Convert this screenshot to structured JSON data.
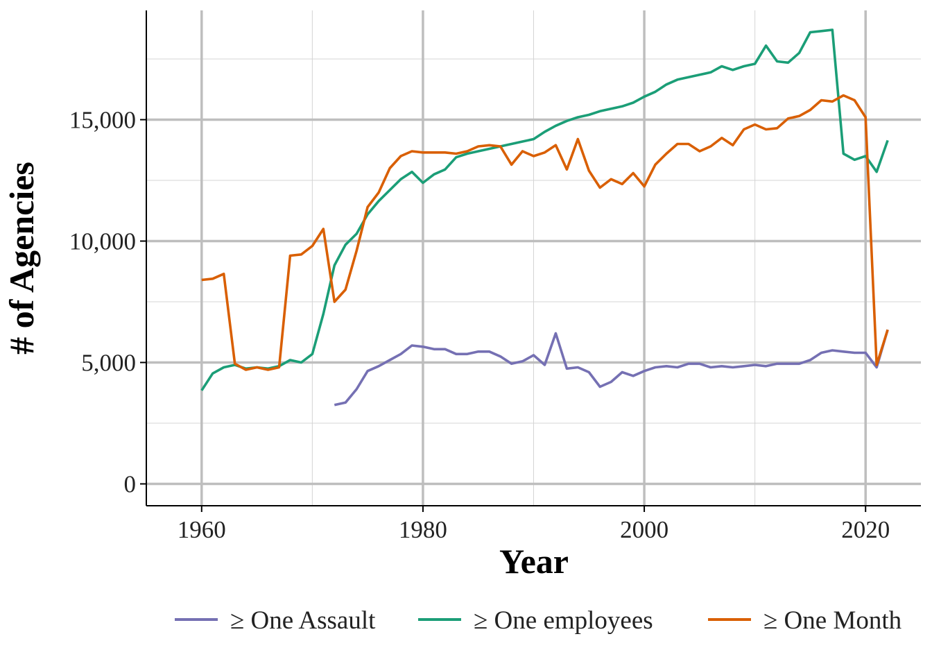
{
  "chart_data": {
    "type": "line",
    "title": "",
    "xlabel": "Year",
    "ylabel": "# of Agencies",
    "xlim": [
      1955,
      2025
    ],
    "ylim": [
      -900,
      19500
    ],
    "x_ticks": [
      1960,
      1980,
      2000,
      2020
    ],
    "x_tick_labels": [
      "1960",
      "1980",
      "2000",
      "2020"
    ],
    "y_ticks": [
      0,
      5000,
      10000,
      15000
    ],
    "y_tick_labels": [
      "0",
      "5,000",
      "10,000",
      "15,000"
    ],
    "grid": true,
    "legend_position": "bottom",
    "series": [
      {
        "name": "≥ One Assault",
        "color": "#7570B3",
        "x": [
          1972,
          1973,
          1974,
          1975,
          1976,
          1977,
          1978,
          1979,
          1980,
          1981,
          1982,
          1983,
          1984,
          1985,
          1986,
          1987,
          1988,
          1989,
          1990,
          1991,
          1992,
          1993,
          1994,
          1995,
          1996,
          1997,
          1998,
          1999,
          2000,
          2001,
          2002,
          2003,
          2004,
          2005,
          2006,
          2007,
          2008,
          2009,
          2010,
          2011,
          2012,
          2013,
          2014,
          2015,
          2016,
          2017,
          2018,
          2019,
          2020,
          2021,
          2022
        ],
        "values": [
          3250,
          3350,
          3900,
          4650,
          4850,
          5100,
          5350,
          5700,
          5650,
          5550,
          5550,
          5350,
          5350,
          5450,
          5450,
          5250,
          4950,
          5050,
          5300,
          4900,
          6200,
          4750,
          4800,
          4600,
          4000,
          4200,
          4600,
          4450,
          4650,
          4800,
          4850,
          4800,
          4950,
          4950,
          4800,
          4850,
          4800,
          4850,
          4900,
          4850,
          4950,
          4950,
          4950,
          5100,
          5400,
          5500,
          5450,
          5400,
          5400,
          4800,
          6350
        ]
      },
      {
        "name": "≥ One employees",
        "color": "#1B9E77",
        "x": [
          1960,
          1961,
          1962,
          1963,
          1964,
          1965,
          1966,
          1967,
          1968,
          1969,
          1970,
          1971,
          1972,
          1973,
          1974,
          1975,
          1976,
          1977,
          1978,
          1979,
          1980,
          1981,
          1982,
          1983,
          1984,
          1985,
          1986,
          1987,
          1988,
          1989,
          1990,
          1991,
          1992,
          1993,
          1994,
          1995,
          1996,
          1997,
          1998,
          1999,
          2000,
          2001,
          2002,
          2003,
          2004,
          2005,
          2006,
          2007,
          2008,
          2009,
          2010,
          2011,
          2012,
          2013,
          2014,
          2015,
          2016,
          2017,
          2018,
          2019,
          2020,
          2021,
          2022
        ],
        "values": [
          3850,
          4550,
          4800,
          4900,
          4750,
          4800,
          4750,
          4850,
          5100,
          5000,
          5350,
          7000,
          9000,
          9850,
          10300,
          11100,
          11650,
          12100,
          12550,
          12850,
          12400,
          12750,
          12950,
          13450,
          13600,
          13700,
          13800,
          13900,
          14000,
          14100,
          14200,
          14500,
          14750,
          14950,
          15100,
          15200,
          15350,
          15450,
          15550,
          15700,
          15950,
          16150,
          16450,
          16650,
          16750,
          16850,
          16950,
          17200,
          17050,
          17200,
          17300,
          18050,
          17400,
          17350,
          17750,
          18600,
          18650,
          18700,
          13600,
          13350,
          13500,
          12850,
          14150
        ]
      },
      {
        "name": "≥ One Month",
        "color": "#D95F02",
        "x": [
          1960,
          1961,
          1962,
          1963,
          1964,
          1965,
          1966,
          1967,
          1968,
          1969,
          1970,
          1971,
          1972,
          1973,
          1974,
          1975,
          1976,
          1977,
          1978,
          1979,
          1980,
          1981,
          1982,
          1983,
          1984,
          1985,
          1986,
          1987,
          1988,
          1989,
          1990,
          1991,
          1992,
          1993,
          1994,
          1995,
          1996,
          1997,
          1998,
          1999,
          2000,
          2001,
          2002,
          2003,
          2004,
          2005,
          2006,
          2007,
          2008,
          2009,
          2010,
          2011,
          2012,
          2013,
          2014,
          2015,
          2016,
          2017,
          2018,
          2019,
          2020,
          2021,
          2022
        ],
        "values": [
          8400,
          8450,
          8650,
          4950,
          4700,
          4800,
          4700,
          4800,
          9400,
          9450,
          9800,
          10500,
          7500,
          8000,
          9600,
          11400,
          12000,
          13000,
          13500,
          13700,
          13650,
          13650,
          13650,
          13600,
          13700,
          13900,
          13950,
          13900,
          13150,
          13700,
          13500,
          13650,
          13950,
          12950,
          14200,
          12900,
          12200,
          12550,
          12350,
          12800,
          12250,
          13150,
          13600,
          14000,
          14000,
          13700,
          13900,
          14250,
          13950,
          14600,
          14800,
          14600,
          14650,
          15050,
          15150,
          15400,
          15800,
          15750,
          16000,
          15800,
          15100,
          4900,
          6350
        ]
      }
    ]
  }
}
